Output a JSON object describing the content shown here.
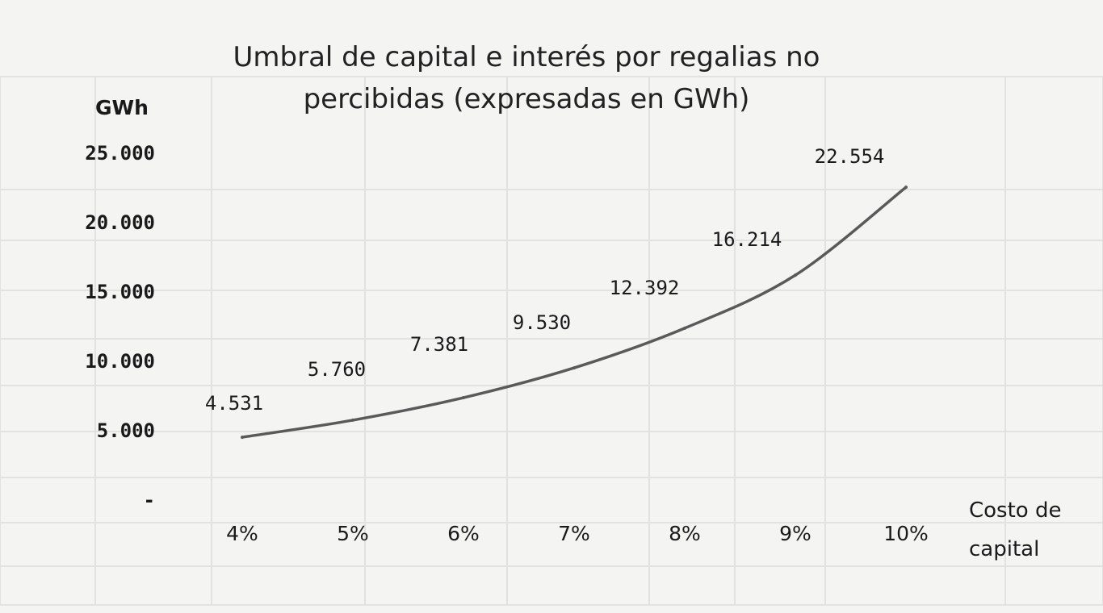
{
  "chart_data": {
    "type": "line",
    "title": "Umbral de capital e interés por regalías no percibidas (expresadas en GWh)",
    "title_lines": [
      "Umbral de capital e interés por regalias no",
      "percibidas (expresadas en GWh)"
    ],
    "ylabel": "GWh",
    "xlabel_lines": [
      "Costo de",
      "capital"
    ],
    "categories": [
      "4%",
      "5%",
      "6%",
      "7%",
      "8%",
      "9%",
      "10%"
    ],
    "values": [
      4531,
      5760,
      7381,
      9530,
      12392,
      16214,
      22554
    ],
    "value_labels": [
      "4.531",
      "5.760",
      "7.381",
      "9.530",
      "12.392",
      "16.214",
      "22.554"
    ],
    "y_ticks": [
      0,
      5000,
      10000,
      15000,
      20000,
      25000
    ],
    "y_tick_labels": [
      "-",
      "5.000",
      "10.000",
      "15.000",
      "20.000",
      "25.000"
    ],
    "ylim": [
      0,
      25000
    ],
    "grid": false,
    "line_color": "#5a5a5a"
  }
}
